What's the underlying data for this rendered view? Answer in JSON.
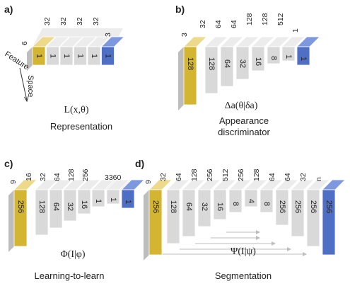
{
  "panels": {
    "a": {
      "label": "a)",
      "left_dim": "6",
      "top_labels": [
        "32",
        "32",
        "32",
        "32"
      ],
      "end_top_label": "3",
      "face_values": [
        "1",
        "1",
        "1",
        "1",
        "1",
        "1"
      ],
      "formula": "L(x,θ)",
      "caption": "Representation",
      "axis_feature": "Feature",
      "axis_space": "Space"
    },
    "b": {
      "label": "b)",
      "left_dim": "3",
      "top_labels": [
        "32",
        "64",
        "64",
        "128",
        "128",
        "512"
      ],
      "end_top_label": "1",
      "face_values": [
        "128",
        "128",
        "64",
        "32",
        "16",
        "8",
        "1",
        "1"
      ],
      "formula": "Δa(θ|δa)",
      "caption_line1": "Appearance",
      "caption_line2": "discriminator"
    },
    "c": {
      "label": "c)",
      "left_dim": "9",
      "top_labels": [
        "16",
        "32",
        "64",
        "128",
        "256"
      ],
      "end_top_label": "3360",
      "face_values": [
        "256",
        "128",
        "64",
        "32",
        "16",
        "1",
        "1",
        "1"
      ],
      "formula": "Φ(I|φ)",
      "caption": "Learning-to-learn"
    },
    "d": {
      "label": "d)",
      "left_dim": "9",
      "top_labels": [
        "32",
        "64",
        "128",
        "256",
        "512",
        "256",
        "128",
        "64",
        "64",
        "32",
        "n"
      ],
      "face_values": [
        "256",
        "128",
        "64",
        "32",
        "16",
        "8",
        "4",
        "8",
        "256",
        "256",
        "256",
        "256"
      ],
      "formula": "Ψ(I|ψ)",
      "caption": "Segmentation"
    }
  },
  "colors": {
    "input_block": "#d4b531",
    "input_top": "#ecd98a",
    "output_block": "#4f6fc4",
    "output_top": "#7d98de",
    "gray_face": "#d9d9d9",
    "gray_top": "#ececec",
    "gray_side": "#bdbdbd"
  }
}
